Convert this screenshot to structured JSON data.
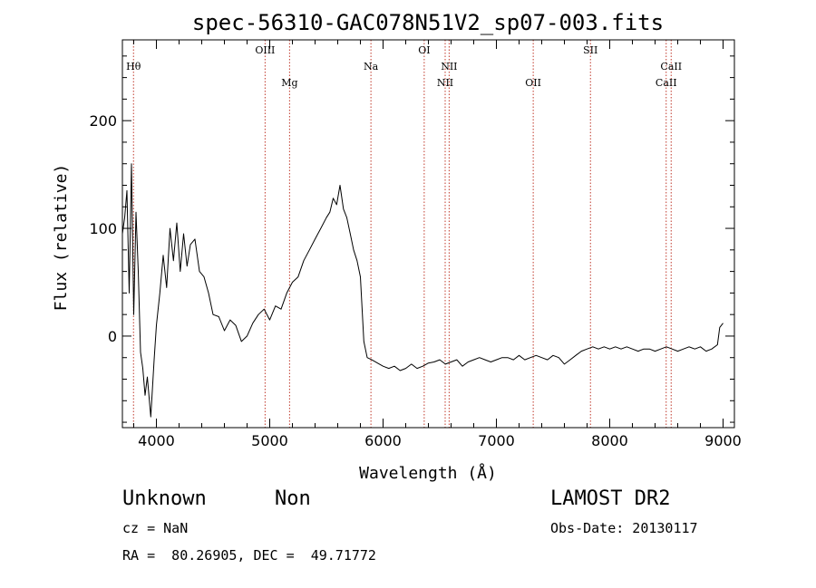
{
  "chart_data": {
    "type": "line",
    "title": "spec-56310-GAC078N51V2_sp07-003.fits",
    "xlabel": "Wavelength (Å)",
    "ylabel": "Flux (relative)",
    "xlim": [
      3700,
      9100
    ],
    "ylim": [
      -85,
      275
    ],
    "xticks": [
      4000,
      5000,
      6000,
      7000,
      8000,
      9000
    ],
    "yticks": [
      0,
      100,
      200
    ],
    "grid": false,
    "series": [
      {
        "line_color": "#000000",
        "x": [
          3700,
          3720,
          3740,
          3760,
          3780,
          3800,
          3820,
          3840,
          3860,
          3880,
          3900,
          3920,
          3950,
          3980,
          4000,
          4030,
          4060,
          4090,
          4120,
          4150,
          4180,
          4210,
          4240,
          4270,
          4300,
          4340,
          4380,
          4420,
          4460,
          4500,
          4550,
          4600,
          4650,
          4700,
          4750,
          4800,
          4850,
          4900,
          4950,
          5000,
          5050,
          5100,
          5150,
          5200,
          5250,
          5300,
          5350,
          5400,
          5450,
          5500,
          5530,
          5560,
          5590,
          5620,
          5650,
          5680,
          5710,
          5740,
          5770,
          5800,
          5830,
          5860,
          5900,
          5950,
          6000,
          6050,
          6100,
          6150,
          6200,
          6250,
          6300,
          6350,
          6400,
          6450,
          6500,
          6550,
          6600,
          6650,
          6700,
          6750,
          6800,
          6850,
          6900,
          6950,
          7000,
          7050,
          7100,
          7150,
          7200,
          7250,
          7300,
          7350,
          7400,
          7450,
          7500,
          7550,
          7600,
          7650,
          7700,
          7750,
          7800,
          7850,
          7900,
          7950,
          8000,
          8050,
          8100,
          8150,
          8200,
          8250,
          8300,
          8350,
          8400,
          8450,
          8500,
          8550,
          8600,
          8650,
          8700,
          8750,
          8800,
          8850,
          8900,
          8950,
          8970,
          9000
        ],
        "y": [
          95,
          110,
          135,
          40,
          160,
          20,
          115,
          60,
          -15,
          -30,
          -55,
          -38,
          -75,
          -22,
          10,
          40,
          75,
          45,
          100,
          70,
          105,
          60,
          95,
          65,
          85,
          90,
          60,
          55,
          40,
          20,
          18,
          5,
          15,
          10,
          -5,
          0,
          12,
          20,
          25,
          15,
          28,
          25,
          40,
          50,
          55,
          70,
          80,
          90,
          100,
          110,
          115,
          128,
          122,
          140,
          118,
          110,
          95,
          80,
          70,
          55,
          -5,
          -20,
          -22,
          -25,
          -28,
          -30,
          -28,
          -32,
          -30,
          -26,
          -30,
          -28,
          -25,
          -24,
          -22,
          -26,
          -24,
          -22,
          -28,
          -24,
          -22,
          -20,
          -22,
          -24,
          -22,
          -20,
          -20,
          -22,
          -18,
          -22,
          -20,
          -18,
          -20,
          -22,
          -18,
          -20,
          -26,
          -22,
          -18,
          -14,
          -12,
          -10,
          -12,
          -10,
          -12,
          -10,
          -12,
          -10,
          -12,
          -14,
          -12,
          -12,
          -14,
          -12,
          -10,
          -12,
          -14,
          -12,
          -10,
          -12,
          -10,
          -14,
          -12,
          -8,
          8,
          12
        ]
      }
    ],
    "annotations": [
      {
        "label": "Hθ",
        "x": 3798,
        "row": 1
      },
      {
        "label": "OIII",
        "x": 4959,
        "row": 0
      },
      {
        "label": "Mg",
        "x": 5175,
        "row": 2
      },
      {
        "label": "Na",
        "x": 5893,
        "row": 1
      },
      {
        "label": "OI",
        "x": 6363,
        "row": 0
      },
      {
        "label": "NII",
        "x": 6548,
        "row": 2
      },
      {
        "label": "NII",
        "x": 6583,
        "row": 1
      },
      {
        "label": "OII",
        "x": 7325,
        "row": 2
      },
      {
        "label": "SII",
        "x": 7830,
        "row": 0
      },
      {
        "label": "CaII",
        "x": 8498,
        "row": 2
      },
      {
        "label": "CaII",
        "x": 8542,
        "row": 1
      }
    ]
  },
  "info": {
    "class_label": "Unknown",
    "subclass_label": "Non",
    "cz_line": "cz = NaN",
    "coords_line": "RA =  80.26905, DEC =  49.71772",
    "survey": "LAMOST DR2",
    "obs_date_line": "Obs-Date: 20130117"
  },
  "colors": {
    "spectrum": "#000000",
    "line_marker": "#c0392b",
    "frame": "#000000",
    "background": "#ffffff"
  }
}
